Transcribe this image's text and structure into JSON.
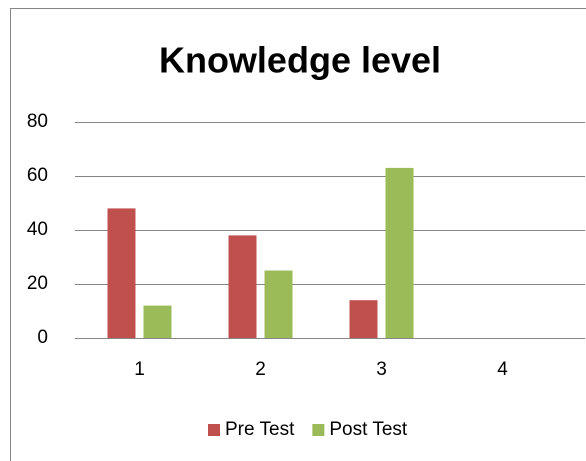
{
  "chart_data": {
    "type": "bar",
    "title": "Knowledge level",
    "categories": [
      "1",
      "2",
      "3",
      "4"
    ],
    "series": [
      {
        "name": "Pre Test",
        "color": "#c0504d",
        "values": [
          48,
          38,
          14,
          null
        ]
      },
      {
        "name": "Post Test",
        "color": "#9bbb59",
        "values": [
          12,
          25,
          63,
          null
        ]
      }
    ],
    "ylim": [
      0,
      80
    ],
    "yticks": [
      0,
      20,
      40,
      60,
      80
    ],
    "grid": true,
    "legend": "bottom"
  }
}
